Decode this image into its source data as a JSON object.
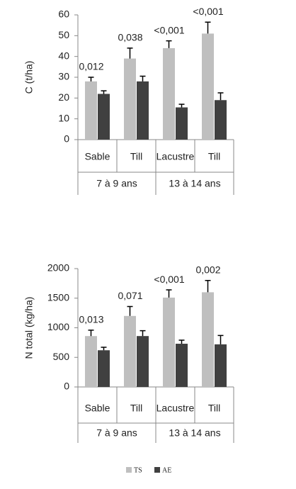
{
  "chart_data": [
    {
      "type": "bar",
      "ylabel": "C (t/ha)",
      "categories": [
        "Sable",
        "Till",
        "Lacustre",
        "Till"
      ],
      "groups": [
        "7 à 9 ans",
        "13 à 14 ans"
      ],
      "annotations": [
        "0,012",
        "0,038",
        "<0,001",
        "<0,001"
      ],
      "series": [
        {
          "name": "TS",
          "color": "#bfbfbf",
          "values": [
            28,
            39,
            44,
            51
          ],
          "errors": [
            2,
            5,
            3.5,
            5.5
          ]
        },
        {
          "name": "AE",
          "color": "#404040",
          "values": [
            22,
            28,
            15.5,
            19
          ],
          "errors": [
            1.5,
            2.5,
            1.5,
            3.5
          ]
        }
      ],
      "ylim": [
        0,
        60
      ],
      "yticks": [
        0,
        10,
        20,
        30,
        40,
        50,
        60
      ]
    },
    {
      "type": "bar",
      "ylabel": "N total (kg/ha)",
      "categories": [
        "Sable",
        "Till",
        "Lacustre",
        "Till"
      ],
      "groups": [
        "7 à 9 ans",
        "13 à 14 ans"
      ],
      "annotations": [
        "0,013",
        "0,071",
        "<0,001",
        "0,002"
      ],
      "series": [
        {
          "name": "TS",
          "color": "#bfbfbf",
          "values": [
            860,
            1200,
            1510,
            1600
          ],
          "errors": [
            100,
            160,
            130,
            200
          ]
        },
        {
          "name": "AE",
          "color": "#404040",
          "values": [
            620,
            860,
            730,
            720
          ],
          "errors": [
            50,
            90,
            60,
            150
          ]
        }
      ],
      "ylim": [
        0,
        2000
      ],
      "yticks": [
        0,
        500,
        1000,
        1500,
        2000
      ]
    }
  ]
}
